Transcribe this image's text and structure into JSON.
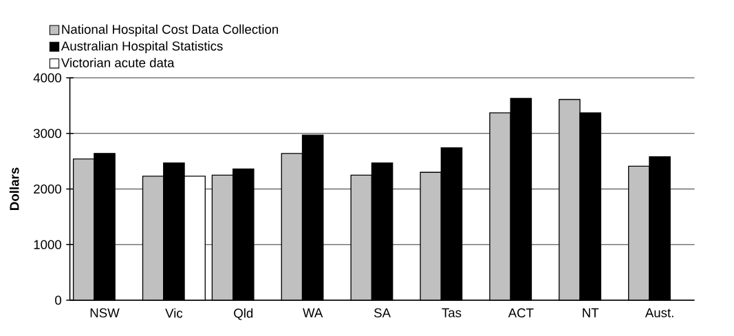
{
  "chart_data": {
    "type": "bar",
    "ylabel": "Dollars",
    "categories": [
      "NSW",
      "Vic",
      "Qld",
      "WA",
      "SA",
      "Tas",
      "ACT",
      "NT",
      "Aust."
    ],
    "series": [
      {
        "name": "National Hospital Cost Data Collection",
        "color": "#c0c0c0",
        "values": [
          2540,
          2230,
          2250,
          2640,
          2250,
          2300,
          3370,
          3610,
          2410
        ]
      },
      {
        "name": "Australian Hospital Statistics",
        "color": "#000000",
        "values": [
          2640,
          2470,
          2360,
          2970,
          2470,
          2740,
          3630,
          3370,
          2580
        ]
      },
      {
        "name": "Victorian acute data",
        "color": "#ffffff",
        "values": [
          null,
          2230,
          null,
          null,
          null,
          null,
          null,
          null,
          null
        ]
      }
    ],
    "ylim": [
      0,
      4000
    ],
    "yticks": [
      0,
      1000,
      2000,
      3000,
      4000
    ],
    "grid": "y",
    "legend": "top left"
  }
}
